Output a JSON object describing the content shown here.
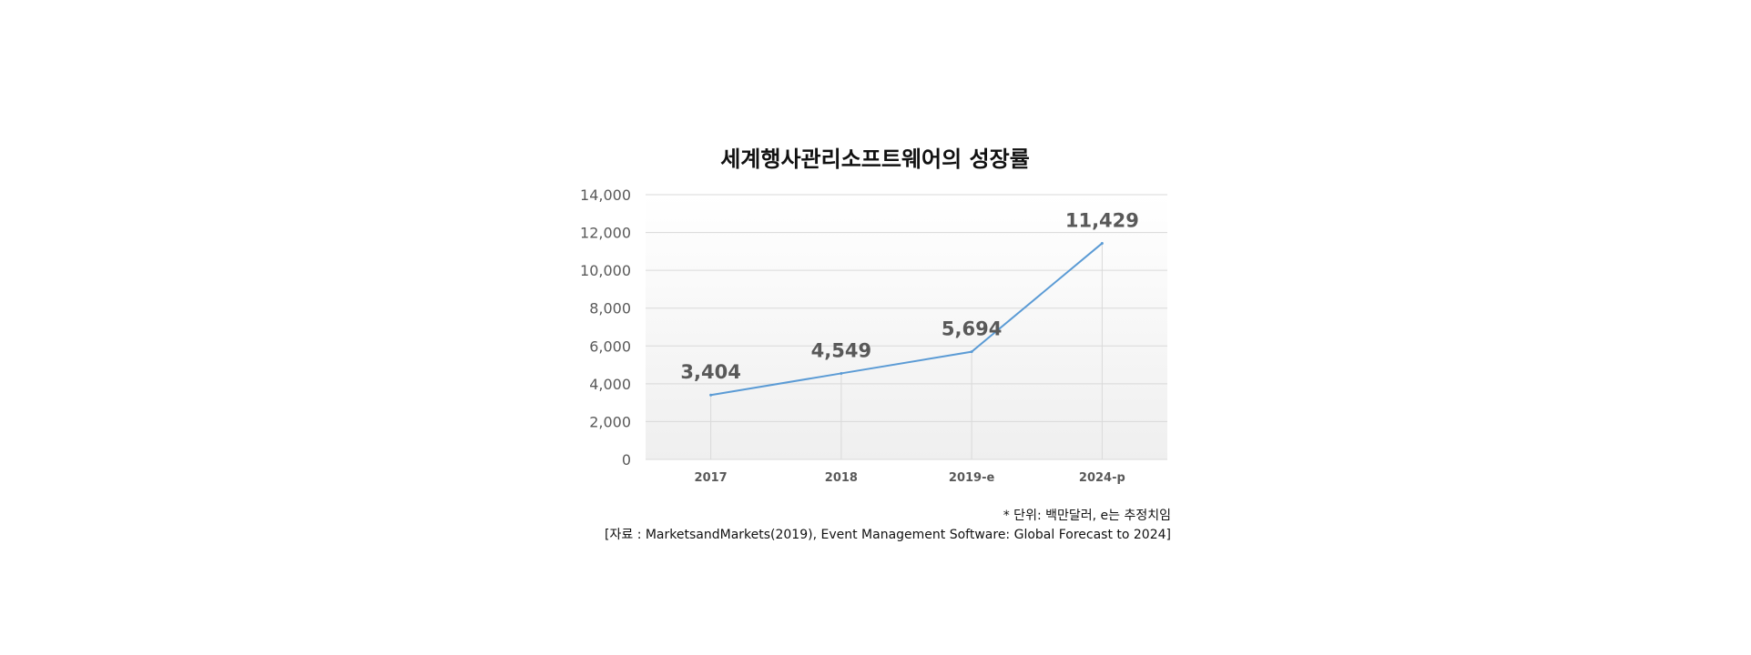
{
  "chart_data": {
    "type": "line",
    "title": "세계행사관리소프트웨어의 성장률",
    "categories": [
      "2017",
      "2018",
      "2019-e",
      "2024-p"
    ],
    "series": [
      {
        "values": [
          3404,
          4549,
          5694,
          11429
        ]
      }
    ],
    "data_labels": [
      "3,404",
      "4,549",
      "5,694",
      "11,429"
    ],
    "ylim": [
      0,
      14000
    ],
    "yticks": [
      0,
      2000,
      4000,
      6000,
      8000,
      10000,
      12000,
      14000
    ],
    "ytick_labels": [
      "0",
      "2,000",
      "4,000",
      "6,000",
      "8,000",
      "10,000",
      "12,000",
      "14,000"
    ],
    "grid": true,
    "colors": {
      "line": "#5b9bd5",
      "grid": "#d9d9d9",
      "plot_bg_top": "#ffffff",
      "plot_bg_bottom": "#efefef",
      "text": "#595959"
    }
  },
  "notes": {
    "unit": "* 단위: 백만달러, e는 추정치임",
    "source": "[자료 : MarketsandMarkets(2019), Event Management Software: Global Forecast to 2024]"
  }
}
